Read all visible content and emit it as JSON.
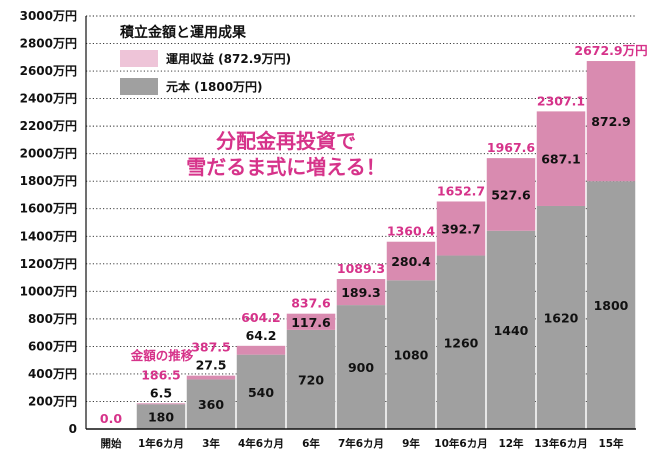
{
  "chart_data": {
    "type": "bar",
    "stacked": true,
    "title": "積立金額と運用成果",
    "categories": [
      "開始",
      "1年6カ月",
      "3年",
      "4年6カ月",
      "6年",
      "7年6カ月",
      "9年",
      "10年6カ月",
      "12年",
      "13年6カ月",
      "15年"
    ],
    "series": [
      {
        "name": "元本 (1800万円)",
        "color": "#a0a0a0",
        "values": [
          0,
          180,
          360,
          540,
          720,
          900,
          1080,
          1260,
          1440,
          1620,
          1800
        ],
        "labels": [
          "",
          "180",
          "360",
          "540",
          "720",
          "900",
          "1080",
          "1260",
          "1440",
          "1620",
          "1800"
        ]
      },
      {
        "name": "運用収益 (872.9万円)",
        "color": "#d98bb0",
        "values": [
          0,
          6.5,
          27.5,
          64.2,
          117.6,
          189.3,
          280.4,
          392.7,
          527.6,
          687.1,
          872.9
        ],
        "labels": [
          "",
          "6.5",
          "27.5",
          "64.2",
          "117.6",
          "189.3",
          "280.4",
          "392.7",
          "527.6",
          "687.1",
          "872.9"
        ]
      }
    ],
    "totals": [
      "0.0",
      "186.5",
      "387.5",
      "604.2",
      "837.6",
      "1089.3",
      "1360.4",
      "1652.7",
      "1967.6",
      "2307.1",
      "2672.9万円"
    ],
    "total_values": [
      0,
      186.5,
      387.5,
      604.2,
      837.6,
      1089.3,
      1360.4,
      1652.7,
      1967.6,
      2307.1,
      2672.9
    ],
    "ylim": [
      0,
      3000
    ],
    "yticks": [
      {
        "value": 0,
        "label": "0"
      },
      {
        "value": 200,
        "label": "200万円"
      },
      {
        "value": 400,
        "label": "400万円"
      },
      {
        "value": 600,
        "label": "600万円"
      },
      {
        "value": 800,
        "label": "800万円"
      },
      {
        "value": 1000,
        "label": "1000万円"
      },
      {
        "value": 1200,
        "label": "1200万円"
      },
      {
        "value": 1400,
        "label": "1400万円"
      },
      {
        "value": 1600,
        "label": "1600万円"
      },
      {
        "value": 1800,
        "label": "1800万円"
      },
      {
        "value": 2000,
        "label": "2000万円"
      },
      {
        "value": 2200,
        "label": "2200万円"
      },
      {
        "value": 2400,
        "label": "2400万円"
      },
      {
        "value": 2600,
        "label": "2600万円"
      },
      {
        "value": 2800,
        "label": "2800万円"
      },
      {
        "value": 3000,
        "label": "3000万円"
      }
    ],
    "grid": true,
    "legend": "top-left",
    "annotations": {
      "callout_line1": "分配金再投資で",
      "callout_line2": "雪だるま式に増える！",
      "trend_label": "金額の推移"
    }
  }
}
